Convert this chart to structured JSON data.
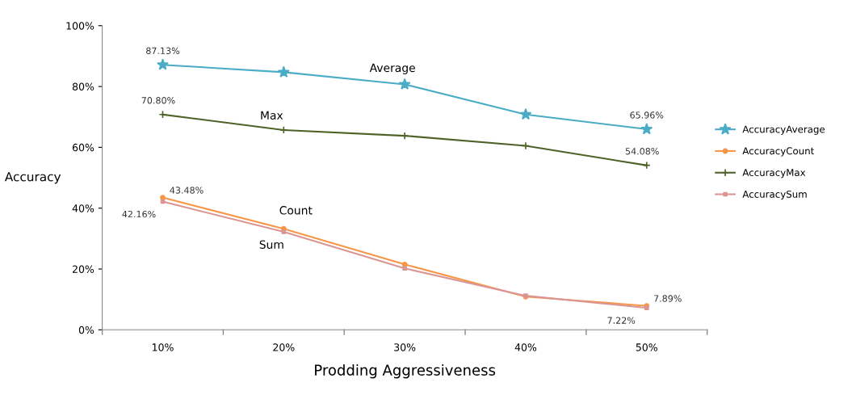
{
  "chart_data": {
    "type": "line",
    "xlabel": "Prodding Aggressiveness",
    "ylabel": "Accuracy",
    "categories": [
      "10%",
      "20%",
      "30%",
      "40%",
      "50%"
    ],
    "ylim": [
      0,
      100
    ],
    "yticks": [
      {
        "value": 0,
        "label": "0%"
      },
      {
        "value": 20,
        "label": "20%"
      },
      {
        "value": 40,
        "label": "40%"
      },
      {
        "value": 60,
        "label": "60%"
      },
      {
        "value": 80,
        "label": "80%"
      },
      {
        "value": 100,
        "label": "100%"
      }
    ],
    "grid": false,
    "legend": "right",
    "series": [
      {
        "name": "AccuracyAverage",
        "color": "#4bacc6",
        "marker": "star",
        "values": [
          87.13,
          84.7,
          80.7,
          70.8,
          65.96
        ],
        "value_labels": [
          "87.13%",
          null,
          null,
          null,
          "65.96%"
        ]
      },
      {
        "name": "AccuracyCount",
        "color": "#f79646",
        "marker": "circle",
        "values": [
          43.48,
          33.2,
          21.5,
          10.9,
          7.89
        ],
        "value_labels": [
          "43.48%",
          null,
          null,
          null,
          "7.89%"
        ]
      },
      {
        "name": "AccuracyMax",
        "color": "#4f6228",
        "marker": "cross",
        "values": [
          70.8,
          65.7,
          63.8,
          60.5,
          54.08
        ],
        "value_labels": [
          "70.80%",
          null,
          null,
          null,
          "54.08%"
        ]
      },
      {
        "name": "AccuracySum",
        "color": "#d99694",
        "marker": "square",
        "values": [
          42.16,
          32.2,
          20.2,
          11.2,
          7.22
        ],
        "value_labels": [
          "42.16%",
          null,
          null,
          null,
          "7.22%"
        ]
      }
    ],
    "annotations": [
      "Average",
      "Count",
      "Max",
      "Sum"
    ]
  }
}
